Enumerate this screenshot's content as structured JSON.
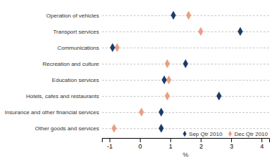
{
  "chart_data": {
    "type": "dot",
    "orientation": "horizontal",
    "categories": [
      "Operation of vehicles",
      "Transport services",
      "Communications",
      "Recreation and culture",
      "Education services",
      "Hotels, cafes and restaurants",
      "Insurance and other financial services",
      "Other goods and services"
    ],
    "series": [
      {
        "name": "Sep Qtr 2010",
        "color": "#1a3a6b",
        "marker": "diamond",
        "values": [
          1.1,
          3.3,
          -0.9,
          1.5,
          0.8,
          2.6,
          0.7,
          0.7
        ]
      },
      {
        "name": "Dec Qtr 2010",
        "color": "#e8a080",
        "marker": "diamond",
        "values": [
          1.6,
          2.0,
          -0.75,
          0.9,
          0.95,
          0.9,
          0.05,
          -0.85
        ]
      }
    ],
    "xlabel": "%",
    "xlim": [
      -1.25,
      4.25
    ],
    "xticks": [
      -1,
      0,
      1,
      2,
      3,
      4
    ],
    "grid": true,
    "legend": "lower right"
  }
}
